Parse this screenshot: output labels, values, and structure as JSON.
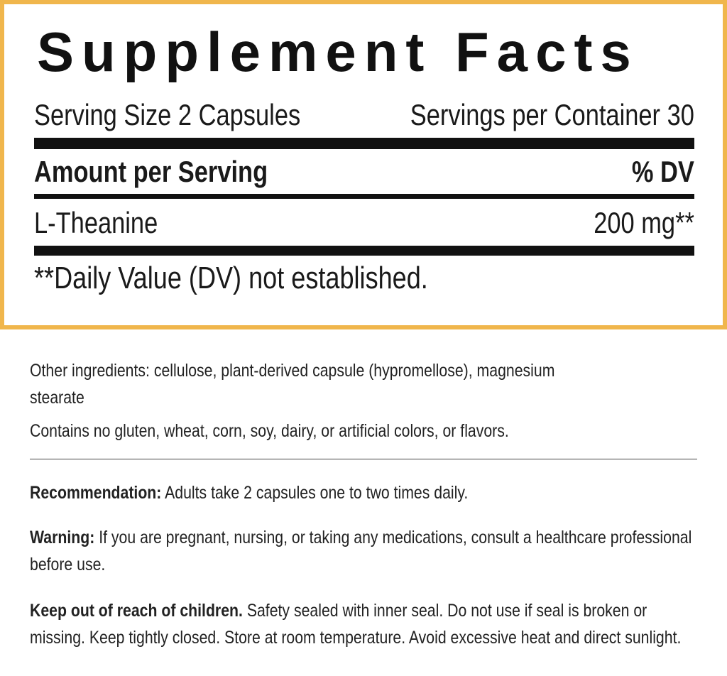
{
  "facts": {
    "title": "Supplement Facts",
    "serving_size": "Serving Size 2 Capsules",
    "servings_per_container": "Servings per Container 30",
    "header_amount": "Amount per Serving",
    "header_dv": "% DV",
    "rows": [
      {
        "name": "L-Theanine",
        "amount": "200 mg**"
      }
    ],
    "footnote": "**Daily Value (DV) not established."
  },
  "other_ingredients": "Other ingredients: cellulose, plant-derived capsule (hypromellose), magnesium stearate",
  "allergens": "Contains no gluten, wheat, corn, soy, dairy, or artificial colors, or flavors.",
  "sections": [
    {
      "label": "Recommendation:",
      "text": "Adults take 2 capsules one to two times daily."
    },
    {
      "label": "Warning:",
      "text": "If you are pregnant, nursing, or taking any medications, consult a healthcare professional before use."
    },
    {
      "label": "Keep out of reach of children.",
      "text": "Safety sealed with inner seal. Do not use if seal is broken or missing. Keep tightly closed. Store at room temperature. Avoid excessive heat and direct sunlight."
    }
  ]
}
